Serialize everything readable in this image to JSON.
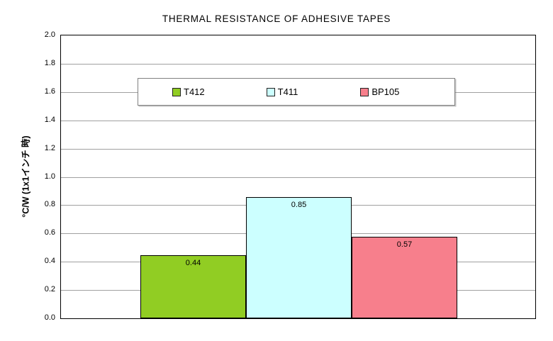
{
  "chart_data": {
    "type": "bar",
    "title": "THERMAL RESISTANCE OF ADHESIVE TAPES",
    "xlabel": "",
    "ylabel": "°C/W (1x1インチ 時)",
    "categories": [
      ""
    ],
    "series": [
      {
        "name": "T412",
        "color": "#91cd23",
        "values": [
          0.44
        ]
      },
      {
        "name": "T411",
        "color": "#ccffff",
        "values": [
          0.85
        ]
      },
      {
        "name": "BP105",
        "color": "#f77f8c",
        "values": [
          0.57
        ]
      }
    ],
    "data_labels": [
      "0.44",
      "0.85",
      "0.57"
    ],
    "ylim": [
      0.0,
      2.0
    ],
    "ytick_step": 0.2,
    "yticks": [
      "2.0",
      "1.8",
      "1.6",
      "1.4",
      "1.2",
      "1.0",
      "0.8",
      "0.6",
      "0.4",
      "0.2",
      "0.0"
    ],
    "grid": true,
    "gridline_color": "#a0a0a0",
    "bar_border_color": "#000000",
    "legend_position": "inside-top-center"
  }
}
